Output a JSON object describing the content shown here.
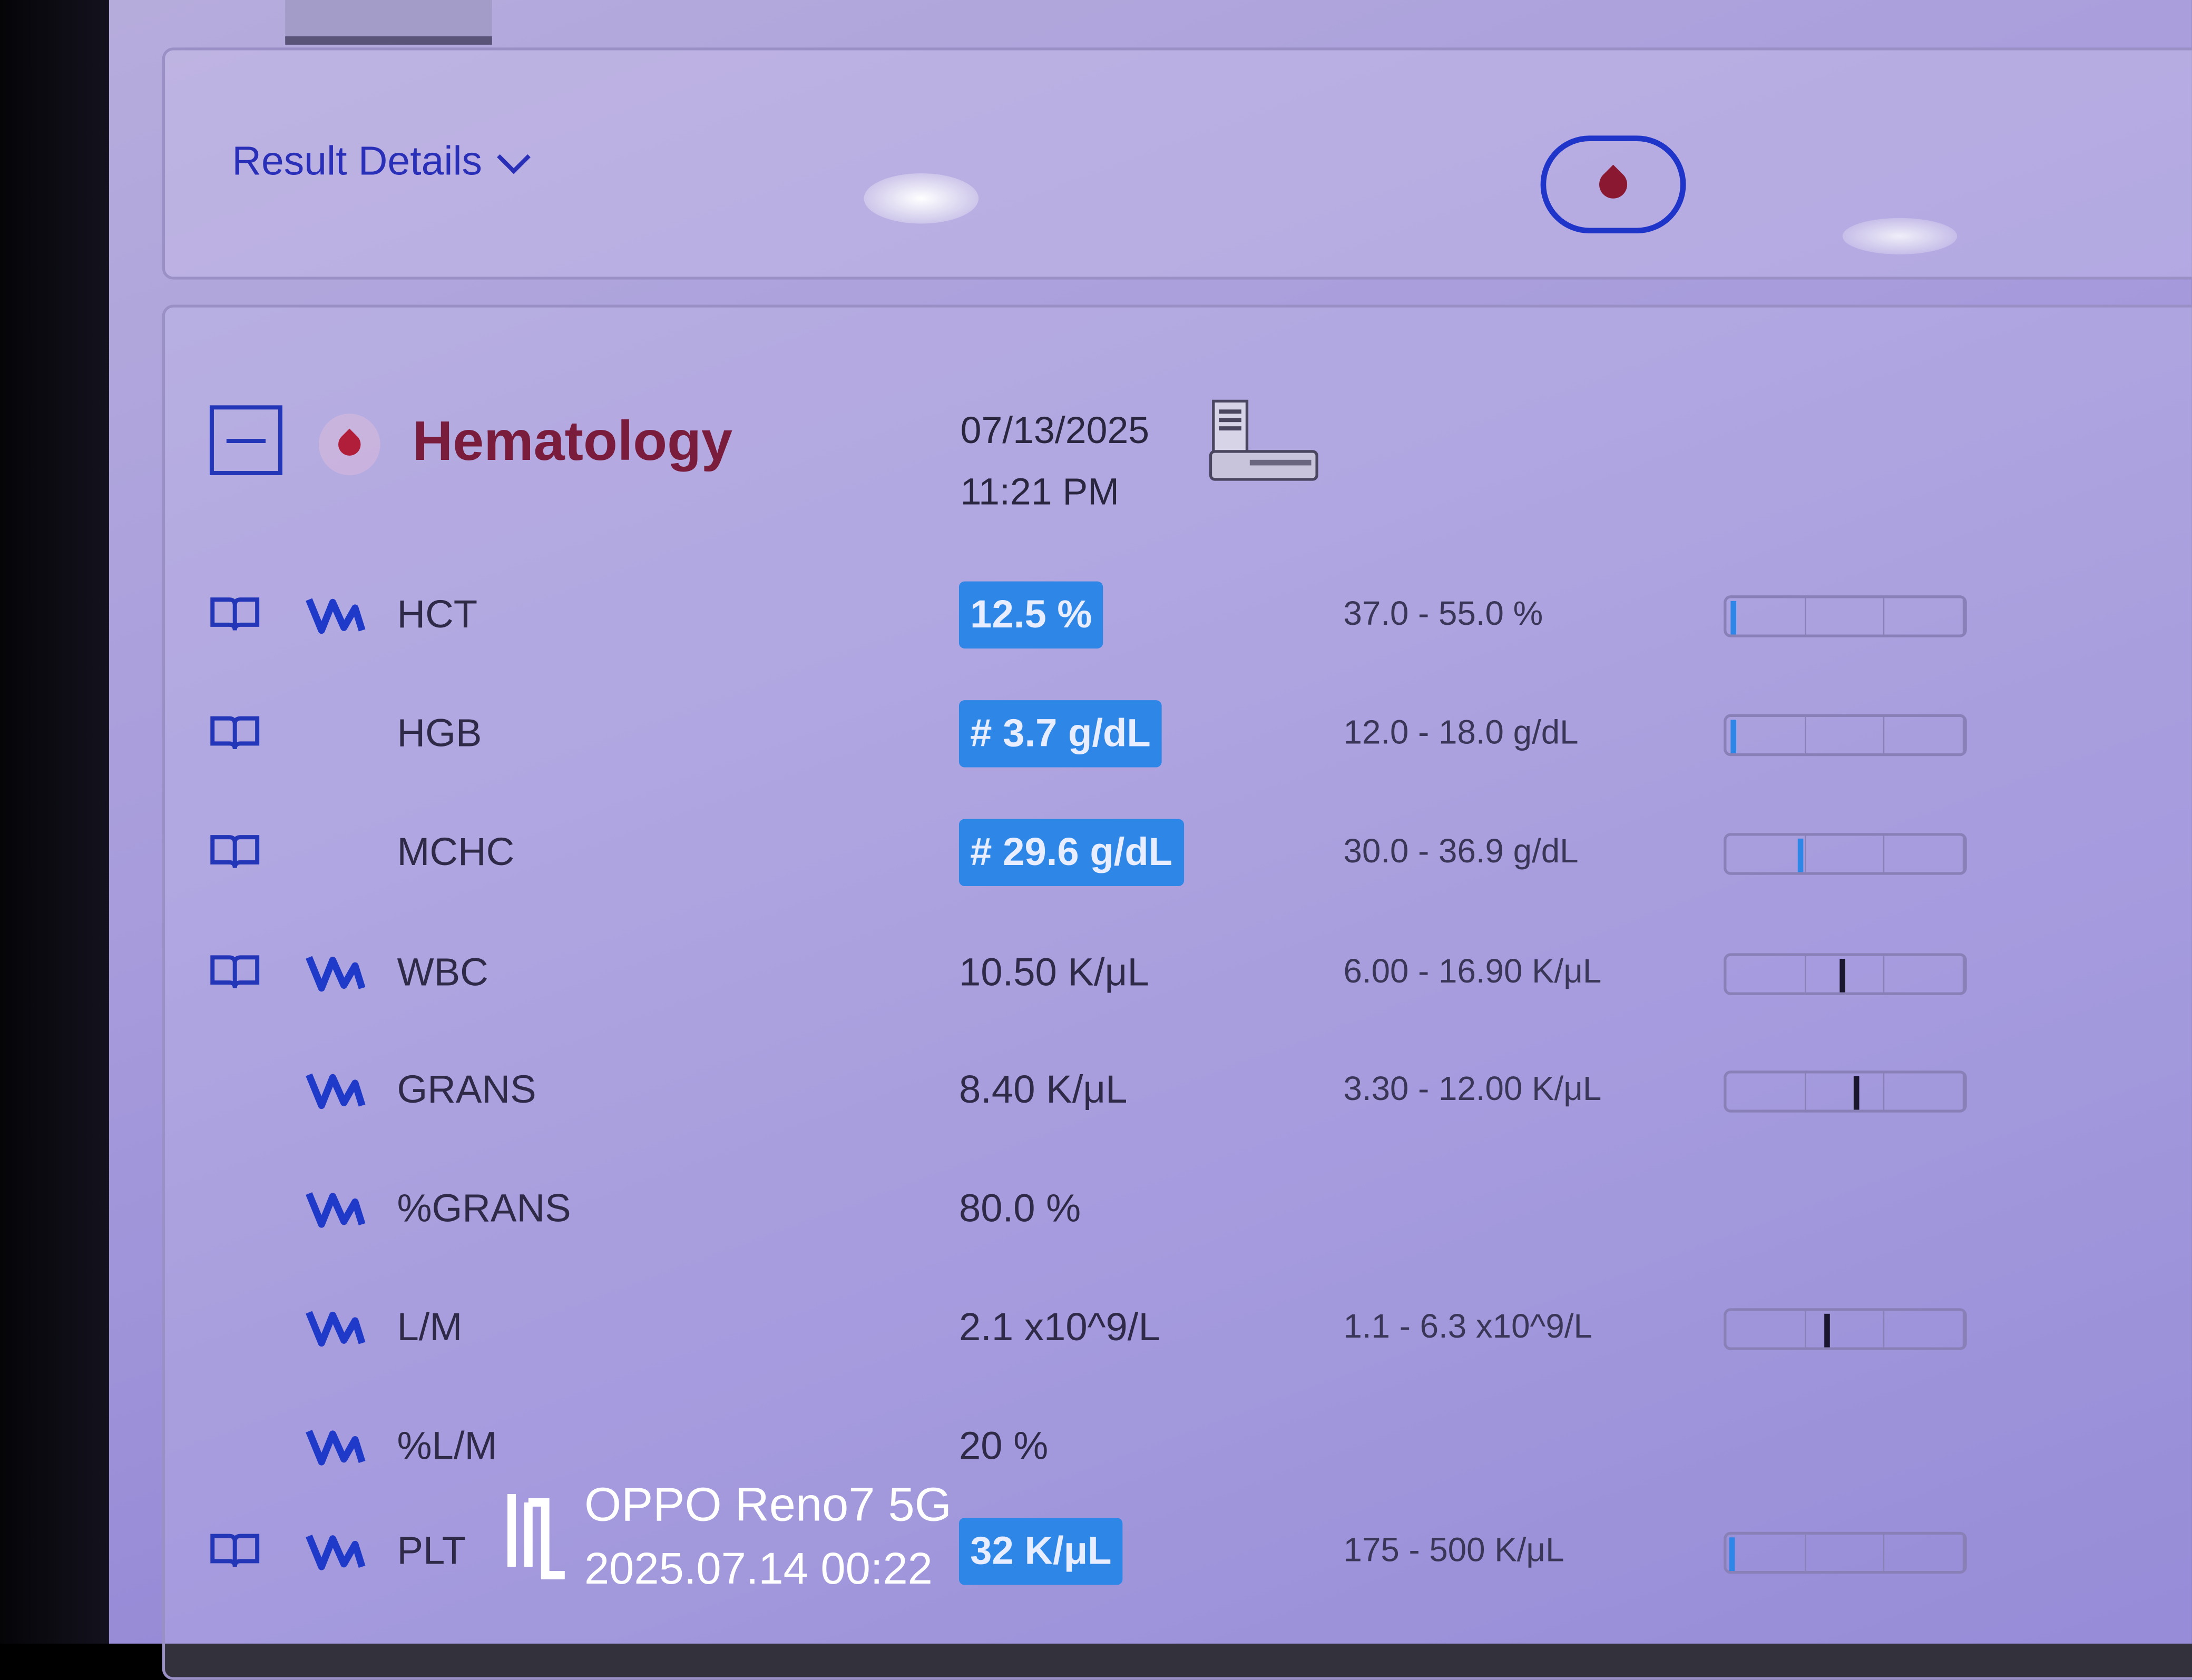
{
  "header": {
    "result_details_label": "Result Details",
    "sample_type_icon": "blood-drop-icon"
  },
  "section": {
    "title": "Hematology",
    "date": "07/13/2025",
    "time": "11:21 PM",
    "analyzer_icon": "analyzer-device-icon"
  },
  "colors": {
    "flag_bg": "#2e86e6",
    "accent": "#2a2fb8",
    "title": "#7a1c3c",
    "low_marker": "#2e86e6",
    "normal_marker": "#1a1630"
  },
  "rows": [
    {
      "name": "HCT",
      "value": "12.5 %",
      "flagged": true,
      "range": "37.0 - 55.0 %",
      "has_book": true,
      "has_trend": true,
      "gauge_position": 0.02,
      "status": "low"
    },
    {
      "name": "HGB",
      "value": "# 3.7 g/dL",
      "flagged": true,
      "range": "12.0 - 18.0 g/dL",
      "has_book": true,
      "has_trend": false,
      "gauge_position": 0.02,
      "status": "low"
    },
    {
      "name": "MCHC",
      "value": "# 29.6 g/dL",
      "flagged": true,
      "range": "30.0 - 36.9 g/dL",
      "has_book": true,
      "has_trend": false,
      "gauge_position": 0.31,
      "status": "low"
    },
    {
      "name": "WBC",
      "value": "10.50 K/μL",
      "flagged": false,
      "range": "6.00 - 16.90 K/μL",
      "has_book": true,
      "has_trend": true,
      "gauge_position": 0.49,
      "status": "normal"
    },
    {
      "name": "GRANS",
      "value": "8.40 K/μL",
      "flagged": false,
      "range": "3.30 - 12.00 K/μL",
      "has_book": false,
      "has_trend": true,
      "gauge_position": 0.55,
      "status": "normal"
    },
    {
      "name": "%GRANS",
      "value": "80.0 %",
      "flagged": false,
      "range": "",
      "has_book": false,
      "has_trend": true,
      "gauge_position": null,
      "status": "normal"
    },
    {
      "name": "L/M",
      "value": "2.1 x10^9/L",
      "flagged": false,
      "range": "1.1 - 6.3 x10^9/L",
      "has_book": false,
      "has_trend": true,
      "gauge_position": 0.42,
      "status": "normal"
    },
    {
      "name": "%L/M",
      "value": "20 %",
      "flagged": false,
      "range": "",
      "has_book": false,
      "has_trend": true,
      "gauge_position": null,
      "status": "normal"
    },
    {
      "name": "PLT",
      "value": "32 K/μL",
      "flagged": true,
      "range": "175 - 500 K/μL",
      "has_book": true,
      "has_trend": true,
      "gauge_position": 0.01,
      "status": "low"
    }
  ],
  "watermark": {
    "device": "OPPO Reno7 5G",
    "timestamp": "2025.07.14 00:22"
  }
}
